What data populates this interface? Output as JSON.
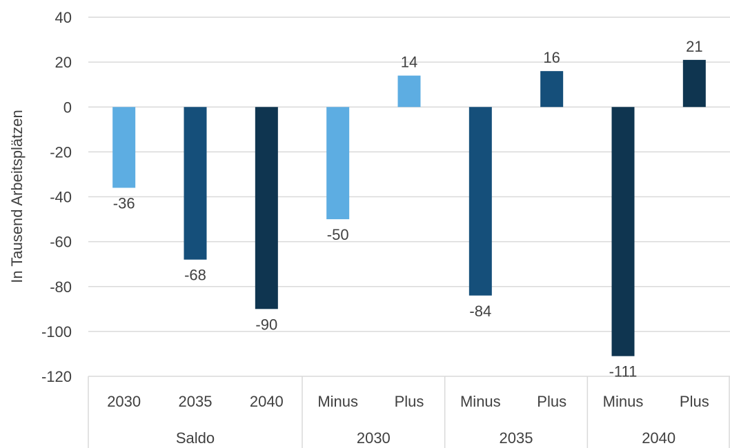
{
  "chart_data": {
    "type": "bar",
    "title": "",
    "xlabel": "",
    "ylabel": "In Tausend Arbeitsplätzen",
    "ylim": [
      -120,
      40
    ],
    "yticks": [
      40,
      20,
      0,
      -20,
      -40,
      -60,
      -80,
      -100,
      -120
    ],
    "grid": true,
    "legend": "none",
    "colors": {
      "2030": "#5DADE2",
      "2035": "#154F7A",
      "2040": "#0F3550",
      "grid": "#D9D9D9",
      "text": "#404040"
    },
    "groups": [
      {
        "label": "Saldo",
        "bars": [
          {
            "category": "2030",
            "value": -36,
            "label": "-36",
            "year": "2030"
          },
          {
            "category": "2035",
            "value": -68,
            "label": "-68",
            "year": "2035"
          },
          {
            "category": "2040",
            "value": -90,
            "label": "-90",
            "year": "2040"
          }
        ]
      },
      {
        "label": "2030",
        "bars": [
          {
            "category": "Minus",
            "value": -50,
            "label": "-50",
            "year": "2030"
          },
          {
            "category": "Plus",
            "value": 14,
            "label": "14",
            "year": "2030"
          }
        ]
      },
      {
        "label": "2035",
        "bars": [
          {
            "category": "Minus",
            "value": -84,
            "label": "-84",
            "year": "2035"
          },
          {
            "category": "Plus",
            "value": 16,
            "label": "16",
            "year": "2035"
          }
        ]
      },
      {
        "label": "2040",
        "bars": [
          {
            "category": "Minus",
            "value": -111,
            "label": "-111",
            "year": "2040"
          },
          {
            "category": "Plus",
            "value": 21,
            "label": "21",
            "year": "2040"
          }
        ]
      }
    ]
  }
}
